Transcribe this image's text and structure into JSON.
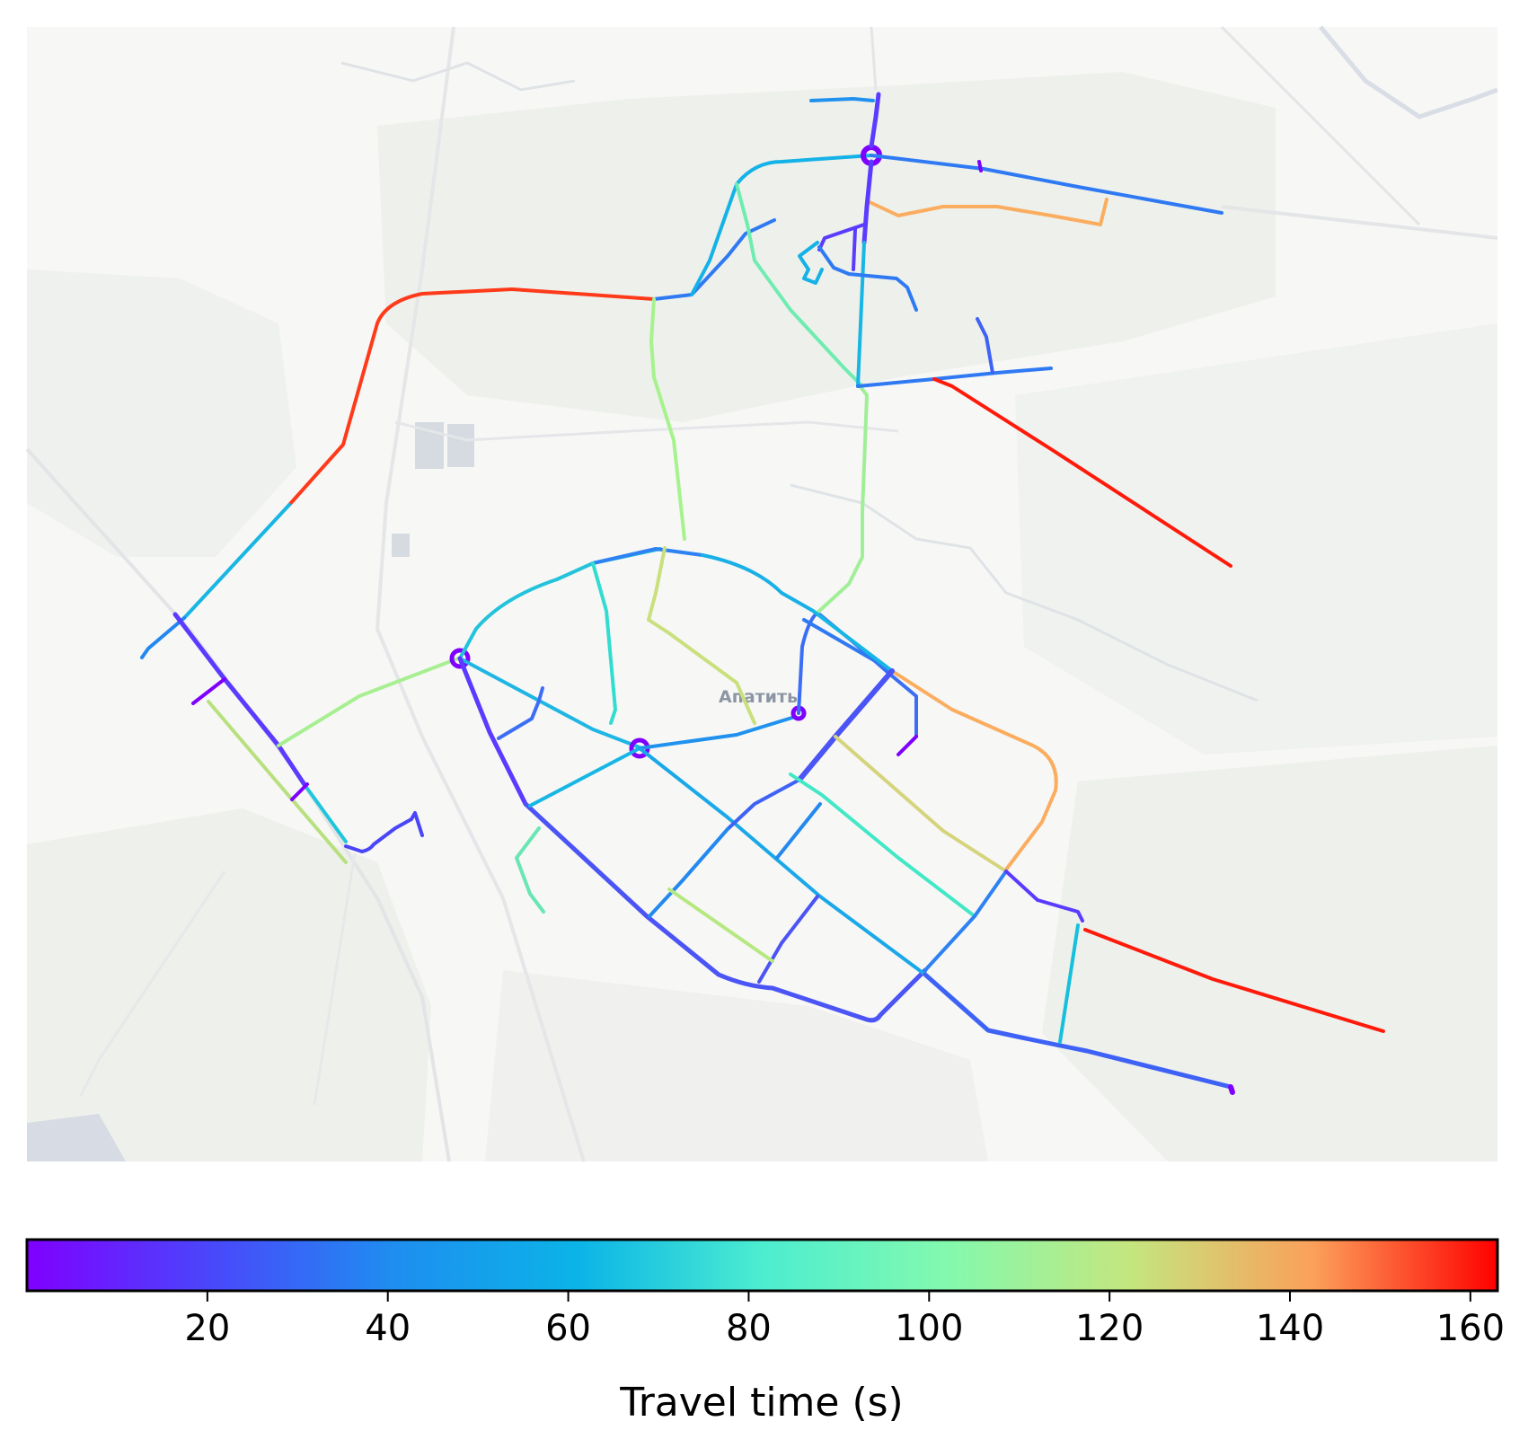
{
  "map": {
    "place_label": "Апатиты",
    "background_color": "#f7f7f6",
    "colormap": "rainbow",
    "colors": {
      "violet": "#7f00ff",
      "blue": "#3b6ef5",
      "cyan": "#0bb4e7",
      "teal": "#52f0c6",
      "lightgreen": "#a6f38e",
      "olive": "#d0d77e",
      "orange": "#fbad5f",
      "red": "#ff1a0a"
    }
  },
  "colorbar": {
    "label": "Travel time (s)",
    "vmin": 0,
    "vmax": 163,
    "ticks": [
      {
        "value": 20,
        "label": "20"
      },
      {
        "value": 40,
        "label": "40"
      },
      {
        "value": 60,
        "label": "60"
      },
      {
        "value": 80,
        "label": "80"
      },
      {
        "value": 100,
        "label": "100"
      },
      {
        "value": 120,
        "label": "120"
      },
      {
        "value": 140,
        "label": "140"
      },
      {
        "value": 160,
        "label": "160"
      }
    ]
  }
}
